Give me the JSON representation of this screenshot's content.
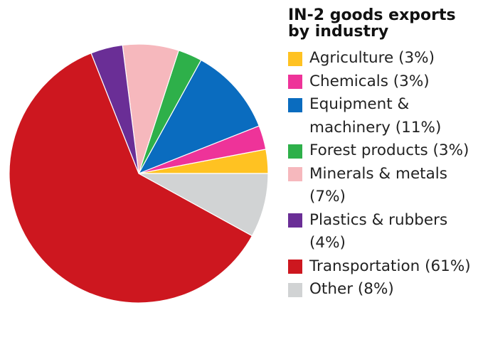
{
  "chart_data": {
    "type": "pie",
    "title": "IN-2 goods exports by industry",
    "slices": [
      {
        "label": "Agriculture (3%)",
        "value": 3,
        "color": "#ffc222"
      },
      {
        "label": "Chemicals (3%)",
        "value": 3,
        "color": "#ee3399"
      },
      {
        "label": "Equipment & machinery (11%)",
        "value": 11,
        "color": "#0a6cbf"
      },
      {
        "label": "Forest products (3%)",
        "value": 3,
        "color": "#2eb04a"
      },
      {
        "label": "Minerals & metals (7%)",
        "value": 7,
        "color": "#f6b8bd"
      },
      {
        "label": "Plastics & rubbers (4%)",
        "value": 4,
        "color": "#6a2e96"
      },
      {
        "label": "Transportation (61%)",
        "value": 61,
        "color": "#cd171f"
      },
      {
        "label": "Other (8%)",
        "value": 8,
        "color": "#d1d3d4"
      }
    ],
    "legend_position": "right"
  }
}
